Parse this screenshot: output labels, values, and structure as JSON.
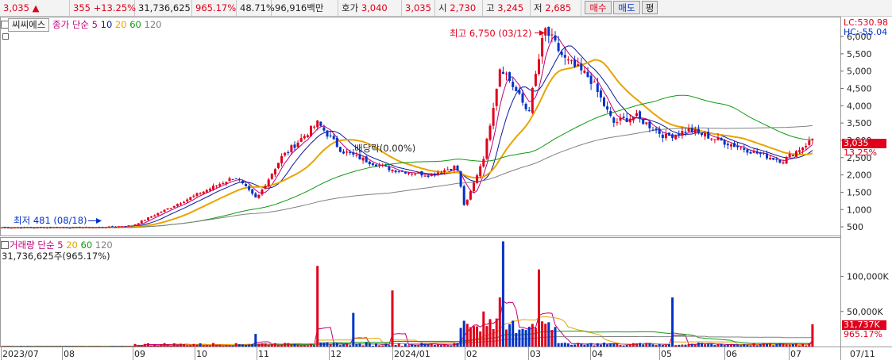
{
  "topbar": {
    "price": "3,035",
    "change_arrow": "▲",
    "change": "355",
    "change_rate": "+13.25%",
    "volume": "31,736,625",
    "volume_ratio": "965.17%",
    "turnover": "48.71%",
    "amount": "96,916백만",
    "quote_label": "호가",
    "ask": "3,040",
    "bid": "3,035",
    "open_label": "시",
    "open": "2,730",
    "high_label": "고",
    "high": "3,245",
    "low_label": "저",
    "low": "2,685",
    "buy_button": "매수",
    "sell_button": "매도",
    "eval_button": "평"
  },
  "price_panel": {
    "stock_name": "씨씨에스",
    "legend_title": "종가 단순",
    "ma_periods": [
      "5",
      "10",
      "20",
      "60",
      "120"
    ],
    "lc_label": "LC:530.98",
    "hc_label": "HC:-55.04",
    "max_label": "최고 6,750 (03/12)",
    "min_label": "최저 481 (08/18)",
    "dividend_label": "배당락(0.00%)",
    "current_price_tag": "3,035",
    "current_rate_tag": "13.25%"
  },
  "volume_panel": {
    "legend_title": "거래량 단순",
    "ma_periods": [
      "5",
      "20",
      "60",
      "120"
    ],
    "summary": "31,736,625주(965.17%)",
    "current_volume_tag": "31,737K",
    "current_ratio_tag": "965.17%"
  },
  "colors": {
    "up": "#e0001b",
    "down": "#0032c8",
    "ma5": "#c0007a",
    "ma10": "#0a1a9a",
    "ma20": "#e8a400",
    "ma60": "#109a10",
    "ma120": "#808080"
  },
  "chart_data": [
    {
      "type": "candlestick",
      "title": "",
      "y_ticks": [
        "6,000",
        "5,500",
        "5,000",
        "4,500",
        "4,000",
        "3,500",
        "3,000",
        "2,500",
        "2,000",
        "1,500",
        "1,000",
        "500"
      ],
      "ylim": [
        250,
        6550
      ],
      "x_ticks": [
        "2023/07",
        "08",
        "09",
        "10",
        "11",
        "12",
        "2024/01",
        "02",
        "03",
        "04",
        "05",
        "06",
        "07",
        "07/11"
      ],
      "close_anchors": {
        "dates": [
          "2023/07",
          "08/18",
          "09/15",
          "10/05",
          "10/20",
          "11/01",
          "11/10",
          "11/24",
          "12/08",
          "12/22",
          "2024/01/08",
          "01/22",
          "02/02",
          "02/05",
          "02/14",
          "02/22",
          "03/04",
          "03/12",
          "03/25",
          "04/05",
          "04/15",
          "04/26",
          "05/10",
          "05/24",
          "06/10",
          "06/25",
          "07/05",
          "07/11"
        ],
        "values": [
          480,
          481,
          540,
          1400,
          1950,
          1300,
          2500,
          3500,
          2700,
          2350,
          2150,
          2000,
          2250,
          1050,
          2600,
          5200,
          3800,
          6200,
          5300,
          4800,
          3500,
          3700,
          3100,
          3300,
          2950,
          2650,
          2400,
          3035
        ]
      },
      "max": {
        "value": 6750,
        "date": "03/12"
      },
      "min": {
        "value": 481,
        "date": "08/18"
      },
      "current": {
        "value": 3035,
        "change_rate": "13.25%"
      }
    },
    {
      "type": "bar",
      "title": "",
      "y_ticks": [
        "100,000K",
        "50,000K"
      ],
      "ylim": [
        0,
        155000
      ],
      "unit": "K shares",
      "spikes": {
        "dates": [
          "11/01",
          "11/16",
          "12/06",
          "12/28",
          "02/14",
          "02/22",
          "03/04",
          "03/12",
          "05/08",
          "07/11"
        ],
        "values": [
          18000,
          115000,
          48000,
          80000,
          50000,
          70000,
          150000,
          110000,
          70000,
          31737
        ]
      },
      "current": {
        "value": 31737,
        "ratio": "965.17%"
      }
    }
  ]
}
